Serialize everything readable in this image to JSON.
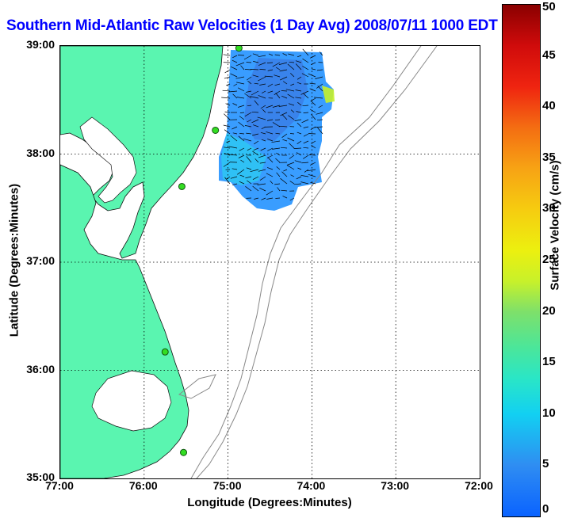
{
  "title": "Southern Mid-Atlantic Raw Velocities (1 Day Avg) 2008/07/11 1000 EDT",
  "axes": {
    "xlabel": "Longitude (Degrees:Minutes)",
    "ylabel": "Latitude (Degrees:Minutes)",
    "lon_ticks": [
      "77:00",
      "76:00",
      "75:00",
      "74:00",
      "73:00",
      "72:00"
    ],
    "lat_ticks": [
      "39:00",
      "38:00",
      "37:00",
      "36:00",
      "35:00"
    ],
    "lon_range": [
      -77,
      -72
    ],
    "lat_range": [
      35,
      39
    ],
    "grid": true
  },
  "colorbar": {
    "label": "Surface Velocity (cm/s)",
    "ticks": [
      "50",
      "45",
      "40",
      "35",
      "30",
      "25",
      "20",
      "15",
      "10",
      "5",
      "0"
    ],
    "range": [
      0,
      50
    ]
  },
  "colors": {
    "land": "#5af5b0",
    "water": "#ffffff",
    "bathymetry": "#888888",
    "title": "#0000ff"
  },
  "stations": [
    {
      "lat": 38.98,
      "lon": -74.87
    },
    {
      "lat": 38.22,
      "lon": -75.15
    },
    {
      "lat": 37.7,
      "lon": -75.55
    },
    {
      "lat": 36.17,
      "lon": -75.75
    },
    {
      "lat": 35.24,
      "lon": -75.53
    }
  ]
}
